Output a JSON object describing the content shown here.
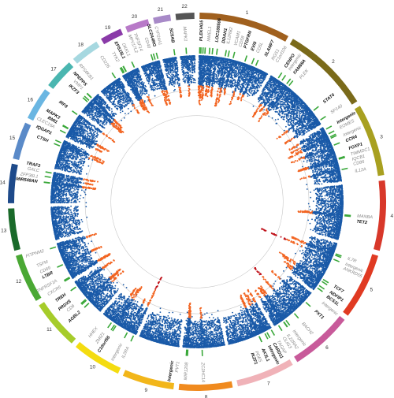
{
  "chart_data": {
    "type": "scatter",
    "variant": "circular Manhattan plot",
    "title": "",
    "chromosomes": [
      {
        "name": "1",
        "length": 249,
        "color": "#a0601e"
      },
      {
        "name": "2",
        "length": 243,
        "color": "#7a6a1a"
      },
      {
        "name": "3",
        "length": 198,
        "color": "#a8a020"
      },
      {
        "name": "4",
        "length": 191,
        "color": "#d8382a"
      },
      {
        "name": "5",
        "length": 181,
        "color": "#e03a22"
      },
      {
        "name": "6",
        "length": 171,
        "color": "#c85a9a"
      },
      {
        "name": "7",
        "length": 159,
        "color": "#f0b2b8"
      },
      {
        "name": "8",
        "length": 146,
        "color": "#f08a1e"
      },
      {
        "name": "9",
        "length": 141,
        "color": "#f2b61a"
      },
      {
        "name": "10",
        "length": 135,
        "color": "#f4dc10"
      },
      {
        "name": "11",
        "length": 135,
        "color": "#a6cc2a"
      },
      {
        "name": "12",
        "length": 133,
        "color": "#4aa834"
      },
      {
        "name": "13",
        "length": 115,
        "color": "#1a6a2a"
      },
      {
        "name": "14",
        "length": 107,
        "color": "#1e4a8a"
      },
      {
        "name": "15",
        "length": 102,
        "color": "#5a8ac8"
      },
      {
        "name": "16",
        "length": 90,
        "color": "#6ab6e2"
      },
      {
        "name": "17",
        "length": 83,
        "color": "#4ab6b0"
      },
      {
        "name": "18",
        "length": 78,
        "color": "#a6d8e0"
      },
      {
        "name": "19",
        "length": 59,
        "color": "#8a3aa8"
      },
      {
        "name": "20",
        "length": 64,
        "color": "#b87ac8"
      },
      {
        "name": "21",
        "length": 47,
        "color": "#a88ac8"
      },
      {
        "name": "22",
        "length": 51,
        "color": "#555555"
      }
    ],
    "series": [
      {
        "color": "#1a5aa8"
      },
      {
        "color": "#f26522"
      },
      {
        "color": "#c0121a"
      }
    ],
    "loci": [
      {
        "gene": "PLEKHG5",
        "chr": "1",
        "pos": 6,
        "peak": 0.55,
        "style": "bold"
      },
      {
        "gene": "MMEL1",
        "chr": "1",
        "pos": 2,
        "peak": 0.45,
        "style": "grey"
      },
      {
        "gene": "LOC100506",
        "chr": "1",
        "pos": 13,
        "peak": 0.5,
        "style": "bold"
      },
      {
        "gene": "DDAH1",
        "chr": "1",
        "pos": 20,
        "peak": 0.5,
        "style": "bold"
      },
      {
        "gene": "IL12RB2",
        "chr": "1",
        "pos": 35,
        "peak": 0.45,
        "style": "grey"
      },
      {
        "gene": "VCAM1",
        "chr": "1",
        "pos": 45,
        "peak": 0.45,
        "style": "grey"
      },
      {
        "gene": "CD58",
        "chr": "1",
        "pos": 60,
        "peak": 0.45,
        "style": "grey"
      },
      {
        "gene": "PTGFRN",
        "chr": "1",
        "pos": 90,
        "peak": 0.55,
        "style": "bold"
      },
      {
        "gene": "EVI5",
        "chr": "1",
        "pos": 100,
        "peak": 0.5,
        "style": "bold"
      },
      {
        "gene": "CD5L",
        "chr": "1",
        "pos": 118,
        "peak": 0.4,
        "style": "grey"
      },
      {
        "gene": "SLAMF7",
        "chr": "1",
        "pos": 160,
        "peak": 0.5,
        "style": "bold"
      },
      {
        "gene": "RGS1",
        "chr": "1",
        "pos": 185,
        "peak": 0.4,
        "style": "grey"
      },
      {
        "gene": "C1orf106",
        "chr": "1",
        "pos": 200,
        "peak": 0.4,
        "style": "grey"
      },
      {
        "gene": "CENPO",
        "chr": "2",
        "pos": 25,
        "peak": 0.5,
        "style": "bold"
      },
      {
        "gene": "Intergenic",
        "chr": "2",
        "pos": 40,
        "peak": 0.4,
        "style": "grey"
      },
      {
        "gene": "FAM69A",
        "chr": "2",
        "pos": 60,
        "peak": 0.5,
        "style": "bold"
      },
      {
        "gene": "PLEK",
        "chr": "2",
        "pos": 70,
        "peak": 0.4,
        "style": "grey"
      },
      {
        "gene": "STAT4",
        "chr": "2",
        "pos": 190,
        "peak": 0.5,
        "style": "bold"
      },
      {
        "gene": "SP140",
        "chr": "2",
        "pos": 230,
        "peak": 0.45,
        "style": "grey"
      },
      {
        "gene": "Intergenic",
        "chr": "3",
        "pos": 10,
        "peak": 0.45,
        "style": "bold"
      },
      {
        "gene": "EOMES",
        "chr": "3",
        "pos": 28,
        "peak": 0.45,
        "style": "grey"
      },
      {
        "gene": "Intergenic",
        "chr": "3",
        "pos": 40,
        "peak": 0.4,
        "style": "grey"
      },
      {
        "gene": "CCR4",
        "chr": "3",
        "pos": 45,
        "peak": 0.5,
        "style": "bold"
      },
      {
        "gene": "FOXP1",
        "chr": "3",
        "pos": 71,
        "peak": 0.5,
        "style": "bold"
      },
      {
        "gene": "TIMMDC1",
        "chr": "3",
        "pos": 119,
        "peak": 0.45,
        "style": "grey"
      },
      {
        "gene": "IQCB1",
        "chr": "3",
        "pos": 121,
        "peak": 0.45,
        "style": "grey"
      },
      {
        "gene": "CD86",
        "chr": "3",
        "pos": 122,
        "peak": 0.45,
        "style": "grey"
      },
      {
        "gene": "IL12A",
        "chr": "3",
        "pos": 159,
        "peak": 0.45,
        "style": "grey"
      },
      {
        "gene": "MANBA",
        "chr": "4",
        "pos": 103,
        "peak": 0.45,
        "style": "grey"
      },
      {
        "gene": "TET2",
        "chr": "4",
        "pos": 106,
        "peak": 0.5,
        "style": "bold"
      },
      {
        "gene": "IL7R",
        "chr": "5",
        "pos": 35,
        "peak": 0.5,
        "style": "grey"
      },
      {
        "gene": "Intergenic",
        "chr": "5",
        "pos": 40,
        "peak": 0.4,
        "style": "grey"
      },
      {
        "gene": "ANKRD55",
        "chr": "5",
        "pos": 55,
        "peak": 0.85,
        "style": "grey"
      },
      {
        "gene": "TCF7",
        "chr": "5",
        "pos": 133,
        "peak": 0.55,
        "style": "bold"
      },
      {
        "gene": "NDFIP1",
        "chr": "5",
        "pos": 141,
        "peak": 0.5,
        "style": "bold"
      },
      {
        "gene": "BCS1L",
        "chr": "5",
        "pos": 158,
        "peak": 0.45,
        "style": "bold"
      },
      {
        "gene": "Intergenic",
        "chr": "5",
        "pos": 168,
        "peak": 0.4,
        "style": "grey"
      },
      {
        "gene": "PXT1",
        "chr": "6",
        "pos": 36,
        "peak": 0.5,
        "style": "bold"
      },
      {
        "gene": "BACH2",
        "chr": "6",
        "pos": 91,
        "peak": 0.65,
        "style": "grey"
      },
      {
        "gene": "Intergenic",
        "chr": "6",
        "pos": 128,
        "peak": 0.45,
        "style": "grey"
      },
      {
        "gene": "IL22RA2",
        "chr": "6",
        "pos": 137,
        "peak": 0.45,
        "style": "grey"
      },
      {
        "gene": "OLIG3",
        "chr": "6",
        "pos": 138,
        "peak": 0.45,
        "style": "grey"
      },
      {
        "gene": "TAGAP",
        "chr": "6",
        "pos": 159,
        "peak": 0.45,
        "style": "grey"
      },
      {
        "gene": "CARD11",
        "chr": "7",
        "pos": 3,
        "peak": 0.5,
        "style": "bold"
      },
      {
        "gene": "Intergenic",
        "chr": "7",
        "pos": 20,
        "peak": 0.45,
        "style": "bold"
      },
      {
        "gene": "AK3L1",
        "chr": "7",
        "pos": 28,
        "peak": 0.5,
        "style": "bold"
      },
      {
        "gene": "PDE5",
        "chr": "7",
        "pos": 50,
        "peak": 0.45,
        "style": "grey"
      },
      {
        "gene": "IKZF1",
        "chr": "7",
        "pos": 50,
        "peak": 0.5,
        "style": "bold"
      },
      {
        "gene": "ZC2HC1A",
        "chr": "8",
        "pos": 79,
        "peak": 0.45,
        "style": "grey"
      },
      {
        "gene": "MIR1208",
        "chr": "8",
        "pos": 129,
        "peak": 0.45,
        "style": "grey"
      },
      {
        "gene": "PVT1",
        "chr": "8",
        "pos": 128,
        "peak": 0.45,
        "style": "grey"
      },
      {
        "gene": "Intergenic",
        "chr": "8",
        "pos": 132,
        "peak": 0.5,
        "style": "bold"
      },
      {
        "gene": "IL2RA",
        "chr": "10",
        "pos": 6,
        "peak": 0.7,
        "style": "grey"
      },
      {
        "gene": "Intergenic",
        "chr": "10",
        "pos": 30,
        "peak": 0.4,
        "style": "grey"
      },
      {
        "gene": "C10orf55",
        "chr": "10",
        "pos": 75,
        "peak": 0.5,
        "style": "bold"
      },
      {
        "gene": "ZMIZ1",
        "chr": "10",
        "pos": 81,
        "peak": 0.45,
        "style": "grey"
      },
      {
        "gene": "HHEX",
        "chr": "10",
        "pos": 94,
        "peak": 0.45,
        "style": "grey"
      },
      {
        "gene": "AGBL2",
        "chr": "11",
        "pos": 47,
        "peak": 0.5,
        "style": "bold"
      },
      {
        "gene": "CD6",
        "chr": "11",
        "pos": 60,
        "peak": 0.45,
        "style": "grey"
      },
      {
        "gene": "PRDX5",
        "chr": "11",
        "pos": 64,
        "peak": 0.5,
        "style": "bold"
      },
      {
        "gene": "TREH",
        "chr": "11",
        "pos": 118,
        "peak": 0.5,
        "style": "bold"
      },
      {
        "gene": "CXCR5",
        "chr": "11",
        "pos": 118,
        "peak": 0.45,
        "style": "grey"
      },
      {
        "gene": "TNFRSF1A",
        "chr": "12",
        "pos": 6,
        "peak": 0.5,
        "style": "grey"
      },
      {
        "gene": "LTBR",
        "chr": "12",
        "pos": 6,
        "peak": 0.5,
        "style": "bold"
      },
      {
        "gene": "CD69",
        "chr": "12",
        "pos": 9,
        "peak": 0.45,
        "style": "grey"
      },
      {
        "gene": "TSFM",
        "chr": "12",
        "pos": 58,
        "peak": 0.45,
        "style": "grey"
      },
      {
        "gene": "FITPNM2",
        "chr": "12",
        "pos": 123,
        "peak": 0.45,
        "style": "grey"
      },
      {
        "gene": "MIR548AN",
        "chr": "14",
        "pos": 68,
        "peak": 0.5,
        "style": "bold"
      },
      {
        "gene": "ZFP36L1",
        "chr": "14",
        "pos": 69,
        "peak": 0.45,
        "style": "grey"
      },
      {
        "gene": "GALC",
        "chr": "14",
        "pos": 88,
        "peak": 0.45,
        "style": "grey"
      },
      {
        "gene": "TRAF3",
        "chr": "14",
        "pos": 103,
        "peak": 0.5,
        "style": "bold"
      },
      {
        "gene": "CTSH",
        "chr": "15",
        "pos": 79,
        "peak": 0.5,
        "style": "bold"
      },
      {
        "gene": "IQGAP1",
        "chr": "15",
        "pos": 91,
        "peak": 0.5,
        "style": "bold"
      },
      {
        "gene": "CLEC16A",
        "chr": "16",
        "pos": 11,
        "peak": 0.45,
        "style": "grey"
      },
      {
        "gene": "BMI1",
        "chr": "16",
        "pos": 28,
        "peak": 0.45,
        "style": "bold"
      },
      {
        "gene": "MAPK3",
        "chr": "16",
        "pos": 30,
        "peak": 0.5,
        "style": "bold"
      },
      {
        "gene": "IRF8",
        "chr": "16",
        "pos": 86,
        "peak": 0.5,
        "style": "bold"
      },
      {
        "gene": "VMP1",
        "chr": "17",
        "pos": 57,
        "peak": 0.45,
        "style": "grey"
      },
      {
        "gene": "NPEPPS",
        "chr": "17",
        "pos": 45,
        "peak": 0.5,
        "style": "bold"
      },
      {
        "gene": "CD226",
        "chr": "18",
        "pos": 67,
        "peak": 0.45,
        "style": "grey"
      },
      {
        "gene": "RPS6KB1",
        "chr": "17",
        "pos": 58,
        "peak": 0.45,
        "style": "grey"
      },
      {
        "gene": "IKZF3",
        "chr": "17",
        "pos": 38,
        "peak": 0.5,
        "style": "bold"
      },
      {
        "gene": "DKKL1",
        "chr": "19",
        "pos": 49,
        "peak": 0.45,
        "style": "grey"
      },
      {
        "gene": "TYK2",
        "chr": "19",
        "pos": 10,
        "peak": 0.45,
        "style": "grey"
      },
      {
        "gene": "EPS15L1",
        "chr": "19",
        "pos": 17,
        "peak": 0.5,
        "style": "bold"
      },
      {
        "gene": "MPV17L2",
        "chr": "19",
        "pos": 18,
        "peak": 0.45,
        "style": "grey"
      },
      {
        "gene": "TNFSF14",
        "chr": "19",
        "pos": 6,
        "peak": 0.45,
        "style": "grey"
      },
      {
        "gene": "CD40",
        "chr": "20",
        "pos": 44,
        "peak": 0.5,
        "style": "grey"
      },
      {
        "gene": "SLC2A4RG",
        "chr": "20",
        "pos": 62,
        "peak": 0.5,
        "style": "bold"
      },
      {
        "gene": "CYP24A1",
        "chr": "20",
        "pos": 52,
        "peak": 0.45,
        "style": "grey"
      },
      {
        "gene": "SC5AB",
        "chr": "21",
        "pos": 43,
        "peak": 0.45,
        "style": "bold"
      },
      {
        "gene": "MAPK1",
        "chr": "22",
        "pos": 22,
        "peak": 0.45,
        "style": "grey"
      }
    ],
    "grid": true,
    "legend": "none"
  }
}
